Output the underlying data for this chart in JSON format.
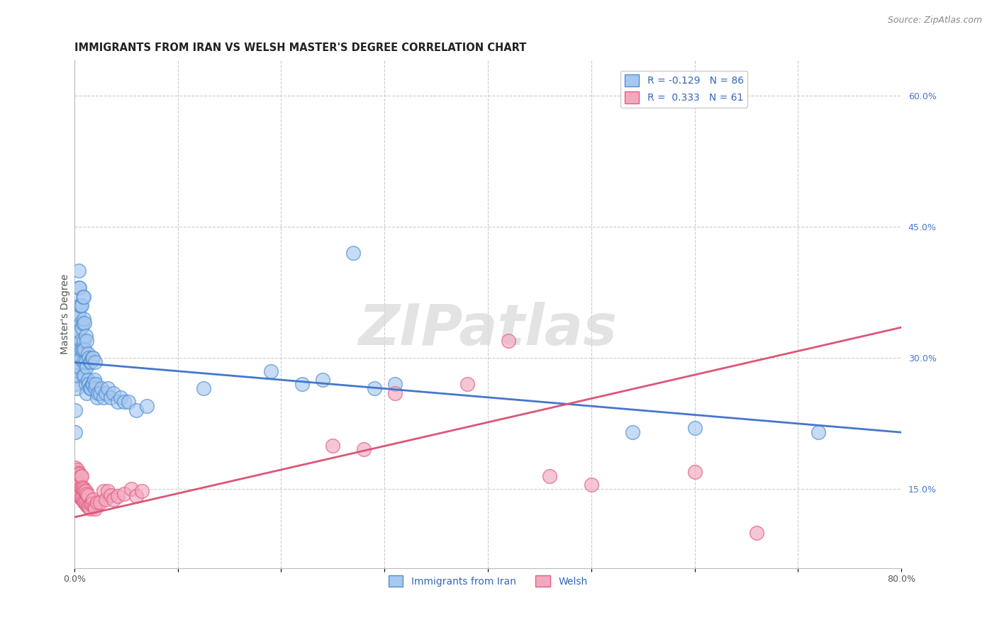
{
  "title": "IMMIGRANTS FROM IRAN VS WELSH MASTER'S DEGREE CORRELATION CHART",
  "source": "Source: ZipAtlas.com",
  "ylabel": "Master's Degree",
  "xlim": [
    0.0,
    0.8
  ],
  "ylim": [
    0.06,
    0.64
  ],
  "yticks_right": [
    0.15,
    0.3,
    0.45,
    0.6
  ],
  "ytick_labels_right": [
    "15.0%",
    "30.0%",
    "45.0%",
    "60.0%"
  ],
  "blue_color": "#A8C8F0",
  "pink_color": "#F4A8C0",
  "blue_edge_color": "#5090D0",
  "pink_edge_color": "#E06080",
  "blue_line_color": "#4477CC",
  "pink_line_color": "#DD5577",
  "legend_blue_label": "R = -0.129   N = 86",
  "legend_pink_label": "R =  0.333   N = 61",
  "legend_label1": "Immigrants from Iran",
  "legend_label2": "Welsh",
  "watermark": "ZIPatlas",
  "title_fontsize": 10.5,
  "source_fontsize": 9,
  "axis_label_fontsize": 10,
  "tick_fontsize": 9,
  "legend_fontsize": 10,
  "background_color": "#ffffff",
  "grid_color": "#cccccc",
  "blue_line_x0": 0.0,
  "blue_line_y0": 0.295,
  "blue_line_x1": 0.8,
  "blue_line_y1": 0.215,
  "pink_line_x0": 0.0,
  "pink_line_y0": 0.118,
  "pink_line_x1": 0.8,
  "pink_line_y1": 0.335,
  "blue_scatter_x": [
    0.001,
    0.001,
    0.001,
    0.002,
    0.002,
    0.002,
    0.002,
    0.003,
    0.003,
    0.003,
    0.003,
    0.004,
    0.004,
    0.004,
    0.004,
    0.004,
    0.005,
    0.005,
    0.005,
    0.005,
    0.005,
    0.006,
    0.006,
    0.006,
    0.006,
    0.007,
    0.007,
    0.007,
    0.008,
    0.008,
    0.008,
    0.008,
    0.009,
    0.009,
    0.009,
    0.009,
    0.01,
    0.01,
    0.01,
    0.011,
    0.011,
    0.011,
    0.012,
    0.012,
    0.012,
    0.013,
    0.013,
    0.014,
    0.014,
    0.015,
    0.015,
    0.016,
    0.016,
    0.017,
    0.017,
    0.018,
    0.018,
    0.019,
    0.02,
    0.02,
    0.021,
    0.022,
    0.023,
    0.025,
    0.026,
    0.028,
    0.03,
    0.032,
    0.035,
    0.038,
    0.042,
    0.045,
    0.048,
    0.052,
    0.06,
    0.07,
    0.125,
    0.19,
    0.22,
    0.24,
    0.27,
    0.29,
    0.31,
    0.54,
    0.6,
    0.72
  ],
  "blue_scatter_y": [
    0.215,
    0.24,
    0.27,
    0.295,
    0.265,
    0.29,
    0.32,
    0.28,
    0.3,
    0.32,
    0.35,
    0.31,
    0.33,
    0.35,
    0.38,
    0.4,
    0.29,
    0.31,
    0.33,
    0.36,
    0.38,
    0.3,
    0.32,
    0.34,
    0.36,
    0.31,
    0.335,
    0.36,
    0.28,
    0.31,
    0.34,
    0.37,
    0.295,
    0.32,
    0.345,
    0.37,
    0.28,
    0.31,
    0.34,
    0.27,
    0.295,
    0.325,
    0.26,
    0.29,
    0.32,
    0.275,
    0.305,
    0.27,
    0.3,
    0.265,
    0.295,
    0.265,
    0.295,
    0.27,
    0.3,
    0.27,
    0.3,
    0.275,
    0.265,
    0.295,
    0.27,
    0.255,
    0.26,
    0.26,
    0.265,
    0.255,
    0.26,
    0.265,
    0.255,
    0.26,
    0.25,
    0.255,
    0.25,
    0.25,
    0.24,
    0.245,
    0.265,
    0.285,
    0.27,
    0.275,
    0.42,
    0.265,
    0.27,
    0.215,
    0.22,
    0.215
  ],
  "pink_scatter_x": [
    0.001,
    0.001,
    0.001,
    0.002,
    0.002,
    0.002,
    0.003,
    0.003,
    0.003,
    0.004,
    0.004,
    0.004,
    0.005,
    0.005,
    0.005,
    0.006,
    0.006,
    0.006,
    0.007,
    0.007,
    0.007,
    0.008,
    0.008,
    0.009,
    0.009,
    0.01,
    0.01,
    0.011,
    0.011,
    0.012,
    0.012,
    0.013,
    0.013,
    0.014,
    0.015,
    0.016,
    0.017,
    0.018,
    0.019,
    0.02,
    0.022,
    0.025,
    0.028,
    0.03,
    0.032,
    0.035,
    0.038,
    0.042,
    0.048,
    0.055,
    0.06,
    0.065,
    0.25,
    0.28,
    0.31,
    0.38,
    0.42,
    0.46,
    0.5,
    0.6,
    0.66
  ],
  "pink_scatter_y": [
    0.15,
    0.16,
    0.175,
    0.145,
    0.158,
    0.17,
    0.148,
    0.16,
    0.172,
    0.145,
    0.157,
    0.168,
    0.142,
    0.155,
    0.167,
    0.14,
    0.152,
    0.165,
    0.14,
    0.152,
    0.165,
    0.138,
    0.152,
    0.136,
    0.15,
    0.135,
    0.148,
    0.135,
    0.148,
    0.132,
    0.145,
    0.13,
    0.143,
    0.13,
    0.128,
    0.133,
    0.133,
    0.138,
    0.13,
    0.128,
    0.135,
    0.135,
    0.148,
    0.138,
    0.148,
    0.143,
    0.138,
    0.142,
    0.145,
    0.15,
    0.142,
    0.148,
    0.2,
    0.196,
    0.26,
    0.27,
    0.32,
    0.165,
    0.155,
    0.17,
    0.1
  ]
}
